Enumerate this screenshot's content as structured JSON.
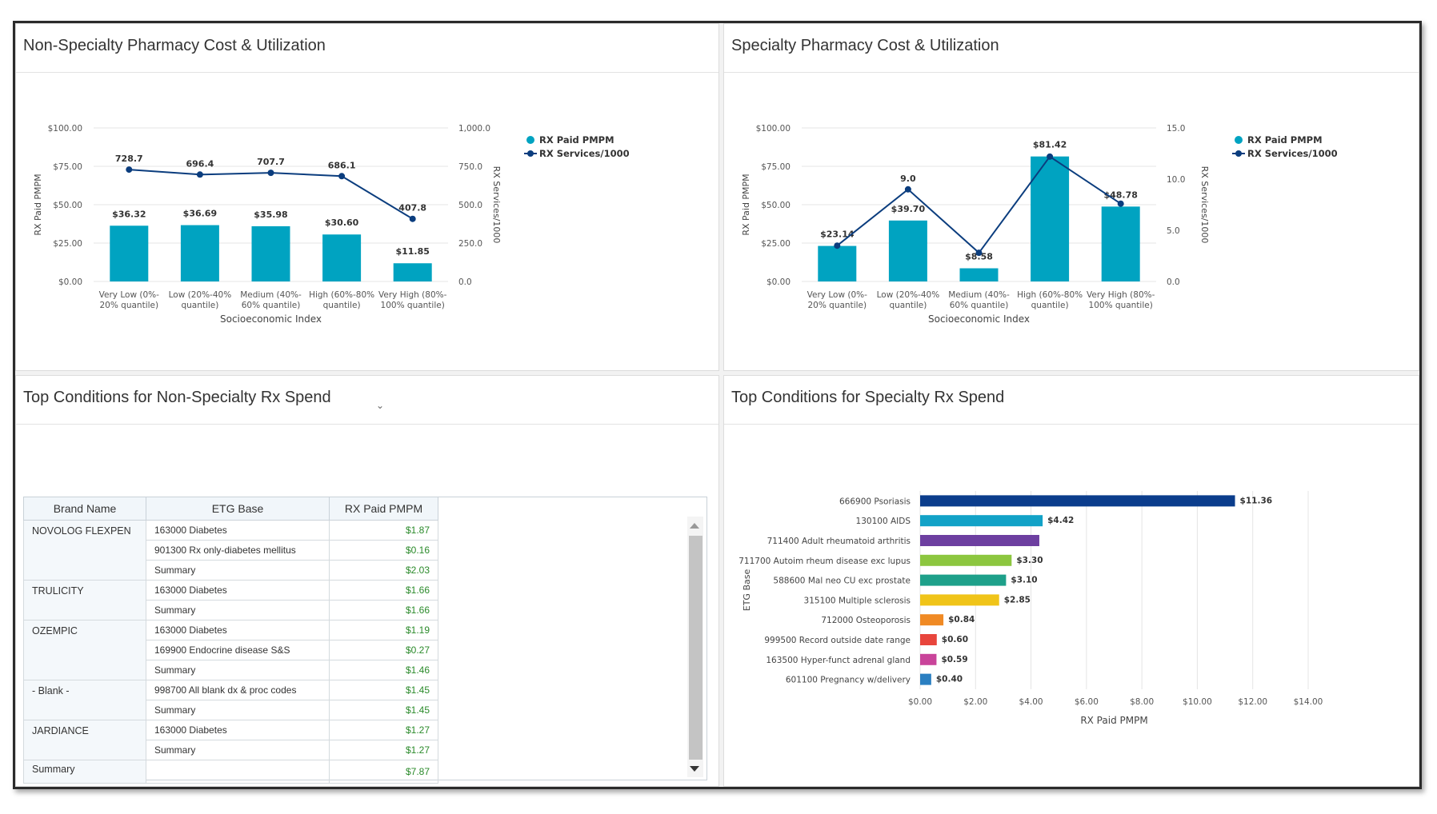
{
  "panels": {
    "top_left_title": "Non-Specialty Pharmacy Cost & Utilization",
    "top_right_title": "Specialty Pharmacy Cost & Utilization",
    "bottom_left_title": "Top Conditions for Non-Specialty Rx Spend",
    "bottom_right_title": "Top Conditions for Specialty Rx Spend"
  },
  "icons": {
    "dropdown": "chevron-down-icon",
    "scroll_up": "triangle-up-icon",
    "scroll_down": "triangle-down-icon"
  },
  "colors": {
    "bar": "#00a3c1",
    "line": "#0b3d7e",
    "value_green": "#2a8a2a"
  },
  "chart_data": [
    {
      "type": "bar+line",
      "categories": [
        [
          "Very Low (0%-",
          "20% quantile)"
        ],
        [
          "Low (20%-40%",
          "quantile)"
        ],
        [
          "Medium (40%-",
          "60% quantile)"
        ],
        [
          "High (60%-80%",
          "quantile)"
        ],
        [
          "Very High (80%-",
          "100% quantile)"
        ]
      ],
      "series": [
        {
          "name": "RX Paid PMPM",
          "kind": "bar",
          "axis": "left",
          "values": [
            36.32,
            36.69,
            35.98,
            30.6,
            11.85
          ],
          "labels": [
            "$36.32",
            "$36.69",
            "$35.98",
            "$30.60",
            "$11.85"
          ]
        },
        {
          "name": "RX Services/1000",
          "kind": "line",
          "axis": "right",
          "values": [
            728.7,
            696.4,
            707.7,
            686.1,
            407.8
          ],
          "labels": [
            "728.7",
            "696.4",
            "707.7",
            "686.1",
            "407.8"
          ]
        }
      ],
      "xlabel": "Socioeconomic Index",
      "ylabel": "RX Paid PMPM",
      "y2label": "RX Services/1000",
      "ylim": [
        0,
        100
      ],
      "y2lim": [
        0,
        1000
      ],
      "yticks": [
        "$0.00",
        "$25.00",
        "$50.00",
        "$75.00",
        "$100.00"
      ],
      "y2ticks": [
        "0.0",
        "250.0",
        "500.0",
        "750.0",
        "1,000.0"
      ],
      "legend": "top-right",
      "grid": true
    },
    {
      "type": "bar+line",
      "categories": [
        [
          "Very Low (0%-",
          "20% quantile)"
        ],
        [
          "Low (20%-40%",
          "quantile)"
        ],
        [
          "Medium (40%-",
          "60% quantile)"
        ],
        [
          "High (60%-80%",
          "quantile)"
        ],
        [
          "Very High (80%-",
          "100% quantile)"
        ]
      ],
      "series": [
        {
          "name": "RX Paid PMPM",
          "kind": "bar",
          "axis": "left",
          "values": [
            23.14,
            39.7,
            8.58,
            81.42,
            48.78
          ],
          "labels": [
            "$23.14",
            "$39.70",
            "$8.58",
            "$81.42",
            "$48.78"
          ]
        },
        {
          "name": "RX Services/1000",
          "kind": "line",
          "axis": "right",
          "values": [
            3.5,
            9.0,
            2.8,
            12.2,
            7.6
          ],
          "labels": [
            "",
            "9.0",
            "",
            "",
            ""
          ]
        }
      ],
      "xlabel": "Socioeconomic Index",
      "ylabel": "RX Paid PMPM",
      "y2label": "RX Services/1000",
      "ylim": [
        0,
        100
      ],
      "y2lim": [
        0,
        15
      ],
      "yticks": [
        "$0.00",
        "$25.00",
        "$50.00",
        "$75.00",
        "$100.00"
      ],
      "y2ticks": [
        "0.0",
        "5.0",
        "10.0",
        "15.0"
      ],
      "legend": "top-right",
      "grid": true
    },
    {
      "type": "bar",
      "orientation": "horizontal",
      "categories": [
        "666900 Psoriasis",
        "130100 AIDS",
        "711400 Adult rheumatoid arthritis",
        "711700 Autoim rheum disease exc lupus",
        "588600 Mal neo CU exc prostate",
        "315100 Multiple sclerosis",
        "712000 Osteoporosis",
        "999500 Record outside date range",
        "163500 Hyper-funct adrenal gland",
        "601100 Pregnancy w/delivery"
      ],
      "values": [
        11.36,
        4.42,
        4.3,
        3.3,
        3.1,
        2.85,
        0.84,
        0.6,
        0.59,
        0.4
      ],
      "labels": [
        "$11.36",
        "$4.42",
        "",
        "$3.30",
        "$3.10",
        "$2.85",
        "$0.84",
        "$0.60",
        "$0.59",
        "$0.40"
      ],
      "colors": [
        "#0b3d8c",
        "#12a2c7",
        "#6d3fa0",
        "#8cc63f",
        "#1ea08a",
        "#f0c419",
        "#f08a24",
        "#e8453c",
        "#c9449a",
        "#2a7fc1"
      ],
      "xlabel": "RX Paid PMPM",
      "ylabel": "ETG Base",
      "xlim": [
        0,
        14
      ],
      "xticks": [
        "$0.00",
        "$2.00",
        "$4.00",
        "$6.00",
        "$8.00",
        "$10.00",
        "$12.00",
        "$14.00"
      ],
      "grid": true
    }
  ],
  "table": {
    "headers": [
      "Brand Name",
      "ETG Base",
      "RX Paid PMPM"
    ],
    "groups": [
      {
        "brand": "NOVOLOG FLEXPEN",
        "rows": [
          [
            "163000 Diabetes",
            "$1.87"
          ],
          [
            "901300 Rx only-diabetes mellitus",
            "$0.16"
          ],
          [
            "Summary",
            "$2.03"
          ]
        ]
      },
      {
        "brand": "TRULICITY",
        "rows": [
          [
            "163000 Diabetes",
            "$1.66"
          ],
          [
            "Summary",
            "$1.66"
          ]
        ]
      },
      {
        "brand": "OZEMPIC",
        "rows": [
          [
            "163000 Diabetes",
            "$1.19"
          ],
          [
            "169900 Endocrine disease S&S",
            "$0.27"
          ],
          [
            "Summary",
            "$1.46"
          ]
        ]
      },
      {
        "brand": "- Blank -",
        "rows": [
          [
            "998700 All blank dx & proc codes",
            "$1.45"
          ],
          [
            "Summary",
            "$1.45"
          ]
        ]
      },
      {
        "brand": "JARDIANCE",
        "rows": [
          [
            "163000 Diabetes",
            "$1.27"
          ],
          [
            "Summary",
            "$1.27"
          ]
        ]
      }
    ],
    "total": {
      "label": "Summary",
      "value": "$7.87"
    }
  }
}
